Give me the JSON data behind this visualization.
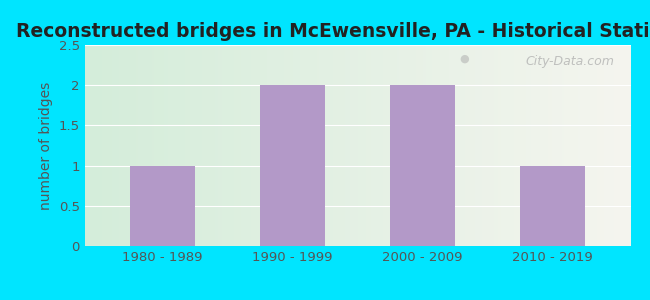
{
  "title": "Reconstructed bridges in McEwensville, PA - Historical Statistics",
  "categories": [
    "1980 - 1989",
    "1990 - 1999",
    "2000 - 2009",
    "2010 - 2019"
  ],
  "values": [
    1,
    2,
    2,
    1
  ],
  "bar_color": "#b399c8",
  "ylabel": "number of bridges",
  "ylim": [
    0,
    2.5
  ],
  "yticks": [
    0,
    0.5,
    1,
    1.5,
    2,
    2.5
  ],
  "background_outer": "#00e5ff",
  "grad_left": "#d4edda",
  "grad_right": "#f5f5ef",
  "title_fontsize": 13.5,
  "ylabel_fontsize": 10,
  "tick_fontsize": 9.5,
  "bar_width": 0.5,
  "watermark": "City-Data.com",
  "title_color": "#222222",
  "ylabel_color": "#555555",
  "tick_color": "#555555",
  "grid_color": "#ffffff",
  "watermark_color": "#aaaaaa"
}
